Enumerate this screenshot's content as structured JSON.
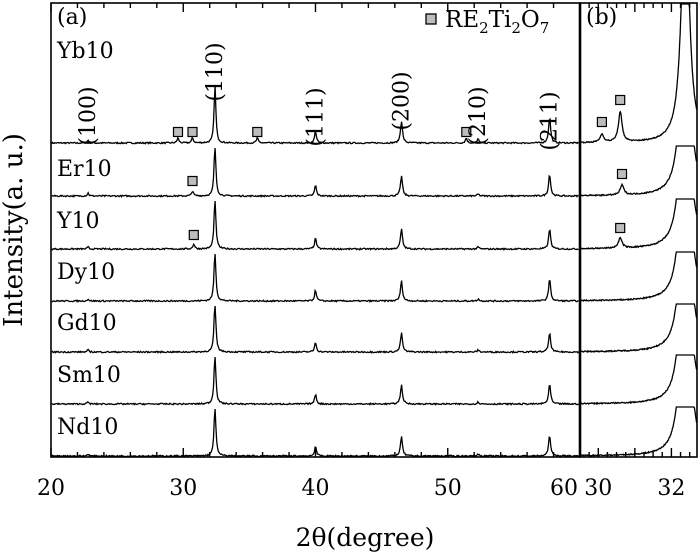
{
  "chart_data": {
    "type": "line",
    "title": "",
    "ylabel": "Intensity(a. u.)",
    "legend": {
      "marker": "square",
      "prefix": "RE",
      "sub1": "2",
      "mid": "Ti",
      "sub2": "2",
      "mid2": "O",
      "sub3": "7",
      "placement": "top-right"
    },
    "panels": [
      {
        "label": "(a)",
        "xlim": [
          20,
          60
        ],
        "xticks": [
          20,
          30,
          40,
          50,
          60
        ],
        "xticks_labels": [
          "20",
          "30",
          "40",
          "50",
          "60"
        ]
      },
      {
        "label": "(b)",
        "xlim": [
          29.5,
          32.7
        ],
        "xticks": [
          30,
          32
        ],
        "xticks_labels": [
          "30",
          "32"
        ]
      }
    ],
    "xlabel": "2θ(degree)",
    "series": [
      {
        "name": "Yb10",
        "pyro_peaks_a": [
          29.6,
          30.7,
          35.6,
          51.4
        ],
        "pyro_peaks_b": [
          30.1,
          30.6
        ]
      },
      {
        "name": "Er10",
        "pyro_peaks_a": [
          30.7
        ],
        "pyro_peaks_b": [
          30.65
        ]
      },
      {
        "name": "Y10",
        "pyro_peaks_a": [
          30.8
        ],
        "pyro_peaks_b": [
          30.6
        ]
      },
      {
        "name": "Dy10",
        "pyro_peaks_a": [],
        "pyro_peaks_b": []
      },
      {
        "name": "Gd10",
        "pyro_peaks_a": [],
        "pyro_peaks_b": []
      },
      {
        "name": "Sm10",
        "pyro_peaks_a": [],
        "pyro_peaks_b": []
      },
      {
        "name": "Nd10",
        "pyro_peaks_a": [],
        "pyro_peaks_b": []
      }
    ],
    "perovskite_peaks": [
      {
        "label": "(100)",
        "x": 22.8
      },
      {
        "label": "(110)",
        "x": 32.4
      },
      {
        "label": "(111)",
        "x": 40.0
      },
      {
        "label": "(200)",
        "x": 46.5
      },
      {
        "label": "(210)",
        "x": 52.3
      },
      {
        "label": "(211)",
        "x": 57.7
      }
    ]
  }
}
